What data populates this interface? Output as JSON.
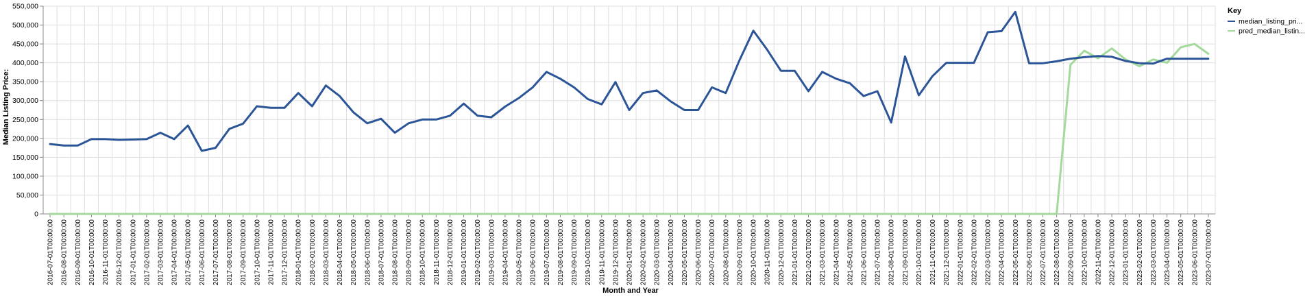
{
  "chart_data": {
    "type": "line",
    "xlabel": "Month and Year",
    "ylabel": "Median Listing Price:",
    "ylim": [
      0,
      550000
    ],
    "y_ticks": [
      "0",
      "50,000",
      "100,000",
      "150,000",
      "200,000",
      "250,000",
      "300,000",
      "350,000",
      "400,000",
      "450,000",
      "500,000",
      "550,000"
    ],
    "grid": true,
    "legend": {
      "title": "Key",
      "position": "top-right"
    },
    "categories": [
      "2016-07-01T00:00:00",
      "2016-08-01T00:00:00",
      "2016-09-01T00:00:00",
      "2016-10-01T00:00:00",
      "2016-11-01T00:00:00",
      "2016-12-01T00:00:00",
      "2017-01-01T00:00:00",
      "2017-02-01T00:00:00",
      "2017-03-01T00:00:00",
      "2017-04-01T00:00:00",
      "2017-05-01T00:00:00",
      "2017-06-01T00:00:00",
      "2017-07-01T00:00:00",
      "2017-08-01T00:00:00",
      "2017-09-01T00:00:00",
      "2017-10-01T00:00:00",
      "2017-11-01T00:00:00",
      "2017-12-01T00:00:00",
      "2018-01-01T00:00:00",
      "2018-02-01T00:00:00",
      "2018-03-01T00:00:00",
      "2018-04-01T00:00:00",
      "2018-05-01T00:00:00",
      "2018-06-01T00:00:00",
      "2018-07-01T00:00:00",
      "2018-08-01T00:00:00",
      "2018-09-01T00:00:00",
      "2018-10-01T00:00:00",
      "2018-11-01T00:00:00",
      "2018-12-01T00:00:00",
      "2019-01-01T00:00:00",
      "2019-02-01T00:00:00",
      "2019-03-01T00:00:00",
      "2019-04-01T00:00:00",
      "2019-05-01T00:00:00",
      "2019-06-01T00:00:00",
      "2019-07-01T00:00:00",
      "2019-08-01T00:00:00",
      "2019-09-01T00:00:00",
      "2019-10-01T00:00:00",
      "2019-11-01T00:00:00",
      "2019-12-01T00:00:00",
      "2020-01-01T00:00:00",
      "2020-02-01T00:00:00",
      "2020-03-01T00:00:00",
      "2020-04-01T00:00:00",
      "2020-05-01T00:00:00",
      "2020-06-01T00:00:00",
      "2020-07-01T00:00:00",
      "2020-08-01T00:00:00",
      "2020-09-01T00:00:00",
      "2020-10-01T00:00:00",
      "2020-11-01T00:00:00",
      "2020-12-01T00:00:00",
      "2021-01-01T00:00:00",
      "2021-02-01T00:00:00",
      "2021-03-01T00:00:00",
      "2021-04-01T00:00:00",
      "2021-05-01T00:00:00",
      "2021-06-01T00:00:00",
      "2021-07-01T00:00:00",
      "2021-08-01T00:00:00",
      "2021-09-01T00:00:00",
      "2021-10-01T00:00:00",
      "2021-11-01T00:00:00",
      "2021-12-01T00:00:00",
      "2022-01-01T00:00:00",
      "2022-02-01T00:00:00",
      "2022-03-01T00:00:00",
      "2022-04-01T00:00:00",
      "2022-05-01T00:00:00",
      "2022-06-01T00:00:00",
      "2022-07-01T00:00:00",
      "2022-08-01T00:00:00",
      "2022-09-01T00:00:00",
      "2022-10-01T00:00:00",
      "2022-11-01T00:00:00",
      "2022-12-01T00:00:00",
      "2023-01-01T00:00:00",
      "2023-02-01T00:00:00",
      "2023-03-01T00:00:00",
      "2023-04-01T00:00:00",
      "2023-05-01T00:00:00",
      "2023-06-01T00:00:00",
      "2023-07-01T00:00:00"
    ],
    "series": [
      {
        "name": "median_listing_pri...",
        "color": "#2b5597",
        "values": [
          185000,
          181000,
          181000,
          198000,
          198000,
          196000,
          197000,
          198000,
          215000,
          198000,
          234000,
          167000,
          175000,
          225000,
          239000,
          285000,
          281000,
          281000,
          320000,
          285000,
          340000,
          312000,
          269000,
          240000,
          252000,
          215000,
          240000,
          250000,
          250000,
          260000,
          292000,
          260000,
          256000,
          284000,
          307000,
          335000,
          376000,
          358000,
          335000,
          304000,
          290000,
          349000,
          275000,
          320000,
          327000,
          298000,
          275000,
          275000,
          335000,
          320000,
          407000,
          485000,
          435000,
          379000,
          379000,
          325000,
          376000,
          358000,
          346000,
          312000,
          325000,
          242000,
          417000,
          314000,
          365000,
          400000,
          400000,
          400000,
          481000,
          484000,
          535000,
          399000,
          399000,
          404000,
          411000,
          415000,
          418000,
          416000,
          405000,
          399000,
          398000,
          411000,
          411000,
          411000,
          411000
        ]
      },
      {
        "name": "pred_median_listin...",
        "color": "#a3d99b",
        "values": [
          0,
          0,
          0,
          0,
          0,
          0,
          0,
          0,
          0,
          0,
          0,
          0,
          0,
          0,
          0,
          0,
          0,
          0,
          0,
          0,
          0,
          0,
          0,
          0,
          0,
          0,
          0,
          0,
          0,
          0,
          0,
          0,
          0,
          0,
          0,
          0,
          0,
          0,
          0,
          0,
          0,
          0,
          0,
          0,
          0,
          0,
          0,
          0,
          0,
          0,
          0,
          0,
          0,
          0,
          0,
          0,
          0,
          0,
          0,
          0,
          0,
          0,
          0,
          0,
          0,
          0,
          0,
          0,
          0,
          0,
          0,
          0,
          0,
          0,
          395000,
          432000,
          412000,
          438000,
          409000,
          391000,
          409000,
          400000,
          441000,
          450000,
          424000
        ]
      }
    ]
  }
}
